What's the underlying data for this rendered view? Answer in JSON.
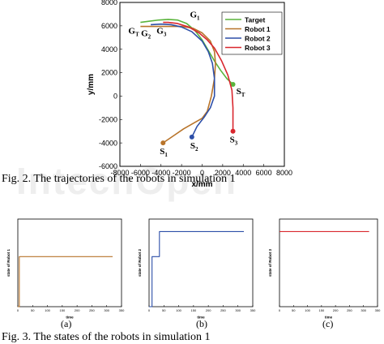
{
  "watermark": "IntechOpen",
  "figure2_caption": "Fig. 2. The trajectories of the robots in simulation 1",
  "figure3_caption": "Fig. 3. The states of the robots in simulation 1",
  "sublabels": [
    "(a)",
    "(b)",
    "(c)"
  ],
  "chart_data": [
    {
      "type": "line",
      "title": "",
      "xlabel": "x/mm",
      "ylabel": "y/mm",
      "xlim": [
        -8000,
        8000
      ],
      "ylim": [
        -6000,
        8000
      ],
      "xticks": [
        -8000,
        -6000,
        -4000,
        -2000,
        0,
        2000,
        4000,
        6000,
        8000
      ],
      "yticks": [
        -6000,
        -4000,
        -2000,
        0,
        2000,
        4000,
        6000,
        8000
      ],
      "grid": false,
      "legend_position": "top-right",
      "series": [
        {
          "name": "Target",
          "color": "#5ab43c",
          "x": [
            3000,
            2400,
            1800,
            1200,
            600,
            0,
            -700,
            -1500,
            -2400,
            -3300,
            -4200,
            -5100,
            -6000
          ],
          "y": [
            1000,
            1500,
            2200,
            3000,
            3900,
            4800,
            5600,
            6200,
            6500,
            6550,
            6500,
            6400,
            6300
          ]
        },
        {
          "name": "Robot 1",
          "color": "#b8742a",
          "x": [
            -3800,
            -2800,
            -1800,
            -800,
            0,
            500,
            900,
            1200,
            1300,
            1200,
            800,
            0,
            -900,
            -2000,
            -3000,
            -4000,
            -5000,
            -6000
          ],
          "y": [
            -4000,
            -3400,
            -2800,
            -2300,
            -1900,
            -1300,
            0,
            1500,
            2800,
            3800,
            4700,
            5400,
            5800,
            5950,
            5950,
            5950,
            5950,
            5950
          ]
        },
        {
          "name": "Robot 2",
          "color": "#2d4fa8",
          "x": [
            -1000,
            -500,
            200,
            800,
            1200,
            1200,
            1000,
            600,
            0,
            -1000,
            -2000,
            -3000,
            -4000,
            -5000
          ],
          "y": [
            -3500,
            -2600,
            -1800,
            -1000,
            0,
            1500,
            2800,
            3800,
            4700,
            5500,
            5900,
            6100,
            6150,
            6100
          ]
        },
        {
          "name": "Robot 3",
          "color": "#d9272e",
          "x": [
            3000,
            3000,
            2900,
            2500,
            1900,
            1200,
            500,
            -300,
            -1300,
            -2400,
            -3300,
            -3800
          ],
          "y": [
            -3000,
            -1000,
            500,
            1800,
            3000,
            4100,
            4800,
            5400,
            5900,
            6200,
            6300,
            6300
          ]
        }
      ],
      "annotations": [
        {
          "text": "S",
          "sub": "T",
          "x": 3000,
          "y": 1000
        },
        {
          "text": "S",
          "sub": "1",
          "x": -3800,
          "y": -4000
        },
        {
          "text": "S",
          "sub": "2",
          "x": -1000,
          "y": -3500
        },
        {
          "text": "S",
          "sub": "3",
          "x": 3000,
          "y": -3000
        },
        {
          "text": "G",
          "sub": "T",
          "x": -6000,
          "y": 6300
        },
        {
          "text": "G",
          "sub": "2",
          "x": -5000,
          "y": 6100
        },
        {
          "text": "G",
          "sub": "3",
          "x": -3800,
          "y": 6300
        },
        {
          "text": "G",
          "sub": "1",
          "x": -1500,
          "y": 6500
        }
      ]
    },
    {
      "type": "line",
      "title": "",
      "xlabel": "time",
      "ylabel": "state of Robot 1",
      "xlim": [
        0,
        350
      ],
      "ylim": [
        0,
        3.5
      ],
      "xticks": [
        0,
        50,
        100,
        150,
        200,
        250,
        300,
        350
      ],
      "yticks": [
        0,
        0.5,
        1,
        1.5,
        2,
        2.5,
        3,
        3.5
      ],
      "series": [
        {
          "color": "#b8742a",
          "x": [
            0,
            5,
            5,
            320
          ],
          "y": [
            0,
            0,
            2,
            2
          ]
        }
      ]
    },
    {
      "type": "line",
      "title": "",
      "xlabel": "time",
      "ylabel": "state of Robot 2",
      "xlim": [
        0,
        350
      ],
      "ylim": [
        0,
        3.5
      ],
      "xticks": [
        0,
        50,
        100,
        150,
        200,
        250,
        300,
        350
      ],
      "yticks": [
        0,
        0.5,
        1,
        1.5,
        2,
        2.5,
        3,
        3.5
      ],
      "series": [
        {
          "color": "#2d4fa8",
          "x": [
            0,
            10,
            10,
            35,
            35,
            320
          ],
          "y": [
            0,
            0,
            2,
            2,
            3,
            3
          ]
        }
      ]
    },
    {
      "type": "line",
      "title": "",
      "xlabel": "time",
      "ylabel": "state of Robot 3",
      "xlim": [
        0,
        350
      ],
      "ylim": [
        0,
        3.5
      ],
      "xticks": [
        0,
        50,
        100,
        150,
        200,
        250,
        300,
        350
      ],
      "yticks": [
        0,
        0.5,
        1,
        1.5,
        2,
        2.5,
        3,
        3.5
      ],
      "series": [
        {
          "color": "#d9272e",
          "x": [
            0,
            320
          ],
          "y": [
            3,
            3
          ]
        }
      ]
    }
  ]
}
